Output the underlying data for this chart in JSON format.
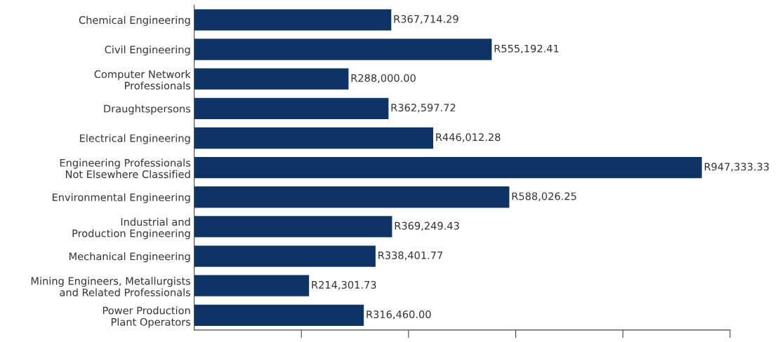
{
  "chart_data": {
    "type": "bar",
    "orientation": "horizontal",
    "categories": [
      "Chemical Engineering",
      "Civil Engineering",
      "Computer Network\nProfessionals",
      "Draughtspersons",
      "Electrical Engineering",
      "Engineering Professionals\nNot Elsewhere Classified",
      "Environmental Engineering",
      "Industrial and\nProduction Engineering",
      "Mechanical Engineering",
      "Mining Engineers, Metallurgists\nand Related Professionals",
      "Power Production\nPlant Operators"
    ],
    "values": [
      367714.29,
      555192.41,
      288000.0,
      362597.72,
      446012.28,
      947333.33,
      588026.25,
      369249.43,
      338401.77,
      214301.73,
      316460.0
    ],
    "value_labels": [
      "R367,714.29",
      "R555,192.41",
      "R288,000.00",
      "R362,597.72",
      "R446,012.28",
      "R947,333.33",
      "R588,026.25",
      "R369,249.43",
      "R338,401.77",
      "R214,301.73",
      "R316,460.00"
    ],
    "color": "#0e3466",
    "xlim": [
      0,
      1000000
    ],
    "xticks": [
      {
        "value": 200000,
        "label": null
      },
      {
        "value": 400000,
        "label": null
      },
      {
        "value": 600000,
        "label": null
      },
      {
        "value": 800000,
        "label": null
      },
      {
        "value": 1000000,
        "label": null
      }
    ],
    "tick_labels": "y",
    "grid": false
  }
}
